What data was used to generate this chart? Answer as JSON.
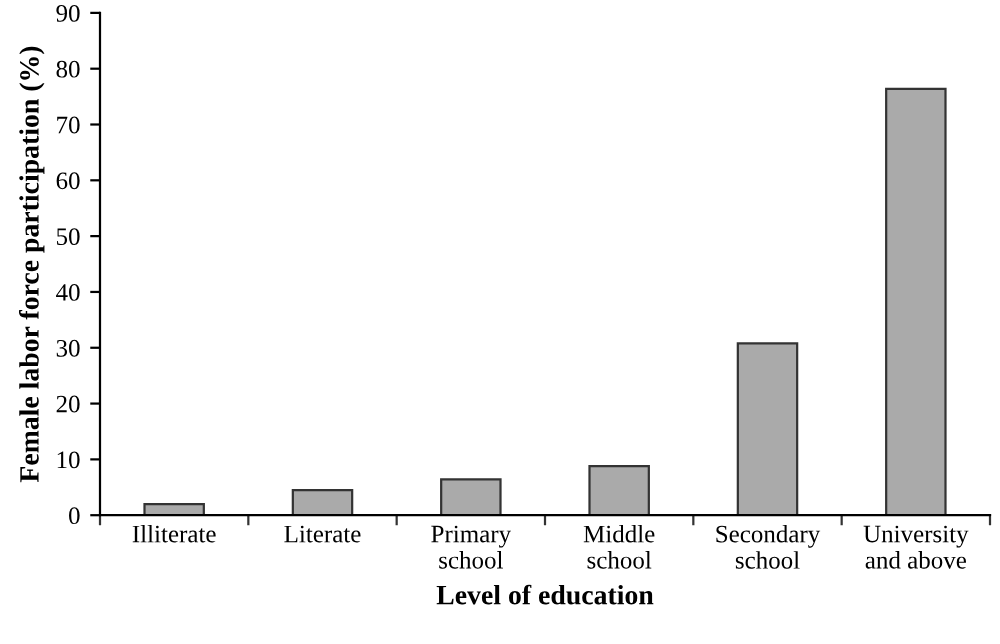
{
  "chart_data": {
    "type": "bar",
    "xlabel": "Level of education",
    "ylabel": "Female labor force participation (%)",
    "categories": [
      "Illiterate",
      "Literate",
      "Primary\nschool",
      "Middle\nschool",
      "Secondary\nschool",
      "University\nand above"
    ],
    "values": [
      2.0,
      4.5,
      6.4,
      8.8,
      30.8,
      76.4
    ],
    "color": "#aaaaaa",
    "ylim": [
      0,
      90
    ],
    "yticks": [
      0,
      10,
      20,
      30,
      40,
      50,
      60,
      70,
      80,
      90
    ],
    "grid": false,
    "legend": false
  }
}
